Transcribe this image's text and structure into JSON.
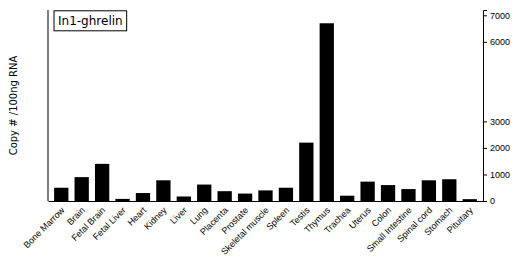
{
  "chart_data": {
    "type": "bar",
    "title": "In1-ghrelin",
    "ylabel": "Copy # /100ng RNA",
    "categories": [
      "Bone Marrow",
      "Brain",
      "Fetal Brain",
      "Fetal Liver",
      "Heart",
      "Kidney",
      "Liver",
      "Lung",
      "Placenta",
      "Prostate",
      "Skeletal muscle",
      "Spleen",
      "Testis",
      "Thymus",
      "Trachea",
      "Uterus",
      "Colon",
      "Small Intestine",
      "Spinal cord",
      "Stomach",
      "Pituitary"
    ],
    "values": [
      500,
      900,
      1400,
      80,
      300,
      780,
      170,
      620,
      370,
      280,
      400,
      500,
      2200,
      6700,
      200,
      730,
      600,
      450,
      780,
      820,
      70
    ],
    "color": "#000000",
    "ylim": [
      0,
      7200
    ],
    "yticks": [
      0,
      1000,
      2000,
      3000,
      6000,
      7000
    ],
    "grid": false
  }
}
